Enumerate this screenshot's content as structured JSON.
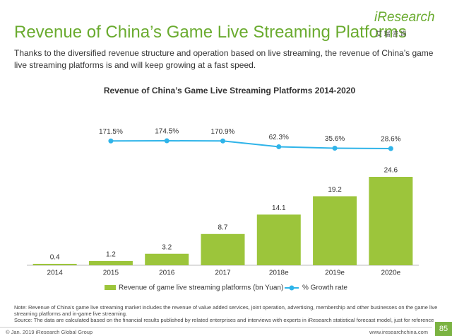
{
  "header": {
    "title": "Revenue of China’s Game Live Streaming Platforms",
    "subtitle": "Thanks to the diversified revenue structure and operation based on live streaming, the revenue of China’s game live streaming platforms is and will keep growing at a fast speed.",
    "logo": "iResearch",
    "logo_cn": "艾 瑞 咨 询"
  },
  "chart_data": {
    "type": "bar",
    "title": "Revenue of China’s Game Live Streaming Platforms 2014-2020",
    "categories": [
      "2014",
      "2015",
      "2016",
      "2017",
      "2018e",
      "2019e",
      "2020e"
    ],
    "series": [
      {
        "name": "Revenue of game live streaming platforms (bn Yuan)",
        "color": "#9cc53b",
        "values": [
          0.4,
          1.2,
          3.2,
          8.7,
          14.1,
          19.2,
          24.6
        ]
      },
      {
        "name": "% Growth rate",
        "color": "#2fb4e9",
        "axis": "y2",
        "values": [
          null,
          171.5,
          174.5,
          170.9,
          62.3,
          35.6,
          28.6
        ],
        "value_labels": [
          null,
          "171.5%",
          "174.5%",
          "170.9%",
          "62.3%",
          "35.6%",
          "28.6%"
        ]
      }
    ]
  },
  "notes": {
    "note": "Note: Revenue of China's game live streaming market includes the revenue of value added services, joint operation, advertising, membership and other businesses on the game live streaming platforms and in-game live streaming.",
    "source": "Source: The data are calculated based on the financial results published by related enterprises and interviews with experts in iResearch statistical forecast model, just for reference"
  },
  "footer": {
    "copyright": "© Jan. 2019 iResearch Global Group",
    "url": "www.iresearchchina.com",
    "page": "85"
  }
}
